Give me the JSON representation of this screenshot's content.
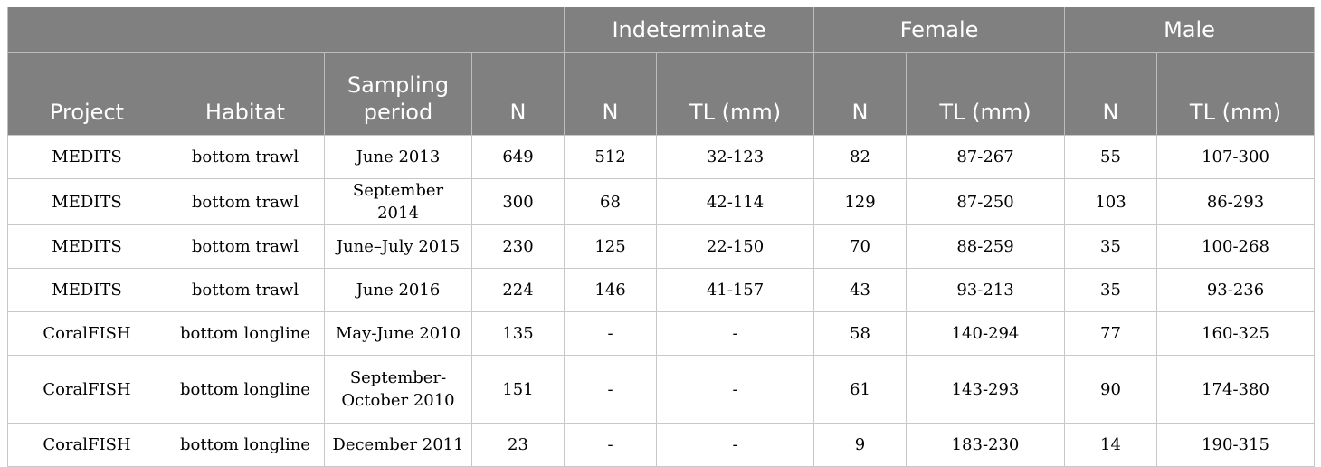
{
  "table": {
    "group_headers": {
      "indeterminate": "Indeterminate",
      "female": "Female",
      "male": "Male"
    },
    "column_headers": {
      "project": "Project",
      "habitat": "Habitat",
      "sampling_period_line1": "Sampling",
      "sampling_period_line2": "period",
      "n": "N",
      "ind_n": "N",
      "ind_tl": "TL (mm)",
      "fem_n": "N",
      "fem_tl": "TL (mm)",
      "male_n": "N",
      "male_tl": "TL (mm)"
    },
    "rows": [
      {
        "project": "MEDITS",
        "habitat": "bottom trawl",
        "period": "June 2013",
        "n": "649",
        "ind_n": "512",
        "ind_tl": "32-123",
        "fem_n": "82",
        "fem_tl": "87-267",
        "male_n": "55",
        "male_tl": "107-300"
      },
      {
        "project": "MEDITS",
        "habitat": "bottom trawl",
        "period": "September 2014",
        "n": "300",
        "ind_n": "68",
        "ind_tl": "42-114",
        "fem_n": "129",
        "fem_tl": "87-250",
        "male_n": "103",
        "male_tl": "86-293"
      },
      {
        "project": "MEDITS",
        "habitat": "bottom trawl",
        "period": "June–July 2015",
        "n": "230",
        "ind_n": "125",
        "ind_tl": "22-150",
        "fem_n": "70",
        "fem_tl": "88-259",
        "male_n": "35",
        "male_tl": "100-268"
      },
      {
        "project": "MEDITS",
        "habitat": "bottom trawl",
        "period": "June 2016",
        "n": "224",
        "ind_n": "146",
        "ind_tl": "41-157",
        "fem_n": "43",
        "fem_tl": "93-213",
        "male_n": "35",
        "male_tl": "93-236"
      },
      {
        "project": "CoralFISH",
        "habitat": "bottom longline",
        "period": "May-June 2010",
        "n": "135",
        "ind_n": "-",
        "ind_tl": "-",
        "fem_n": "58",
        "fem_tl": "140-294",
        "male_n": "77",
        "male_tl": "160-325"
      },
      {
        "project": "CoralFISH",
        "habitat": "bottom longline",
        "period_line1": "September-",
        "period_line2": "October 2010",
        "n": "151",
        "ind_n": "-",
        "ind_tl": "-",
        "fem_n": "61",
        "fem_tl": "143-293",
        "male_n": "90",
        "male_tl": "174-380"
      },
      {
        "project": "CoralFISH",
        "habitat": "bottom longline",
        "period": "December 2011",
        "n": "23",
        "ind_n": "-",
        "ind_tl": "-",
        "fem_n": "9",
        "fem_tl": "183-230",
        "male_n": "14",
        "male_tl": "190-315"
      }
    ]
  }
}
